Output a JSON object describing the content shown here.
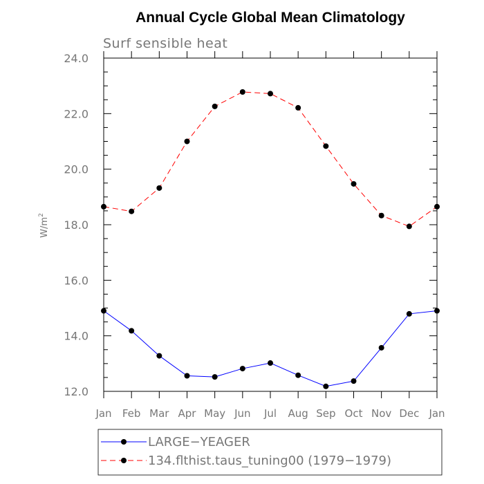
{
  "chart_data": {
    "type": "line",
    "title": "Annual Cycle Global Mean Climatology",
    "subtitle": "Surf sensible heat",
    "ylabel_main": "W/m",
    "ylabel_sup": "2",
    "xlabel": "",
    "ylim": [
      12.0,
      24.0
    ],
    "yticks": [
      "12.0",
      "14.0",
      "16.0",
      "18.0",
      "20.0",
      "22.0",
      "24.0"
    ],
    "ytick_values": [
      12,
      14,
      16,
      18,
      20,
      22,
      24
    ],
    "categories": [
      "Jan",
      "Feb",
      "Mar",
      "Apr",
      "May",
      "Jun",
      "Jul",
      "Aug",
      "Sep",
      "Oct",
      "Nov",
      "Dec",
      "Jan"
    ],
    "series": [
      {
        "name": "LARGE−YEAGER",
        "color": "#0000ff",
        "style": "solid",
        "values": [
          14.9,
          14.18,
          13.28,
          12.56,
          12.52,
          12.82,
          13.02,
          12.58,
          12.18,
          12.37,
          13.57,
          14.79,
          14.9
        ]
      },
      {
        "name": "134.flthist.taus_tuning00 (1979−1979)",
        "color": "#ff0000",
        "style": "dashed",
        "values": [
          18.65,
          18.48,
          19.32,
          21.0,
          22.26,
          22.78,
          22.72,
          22.21,
          20.83,
          19.47,
          18.33,
          17.94,
          18.65
        ]
      }
    ],
    "legend_position": "bottom",
    "grid": false
  }
}
